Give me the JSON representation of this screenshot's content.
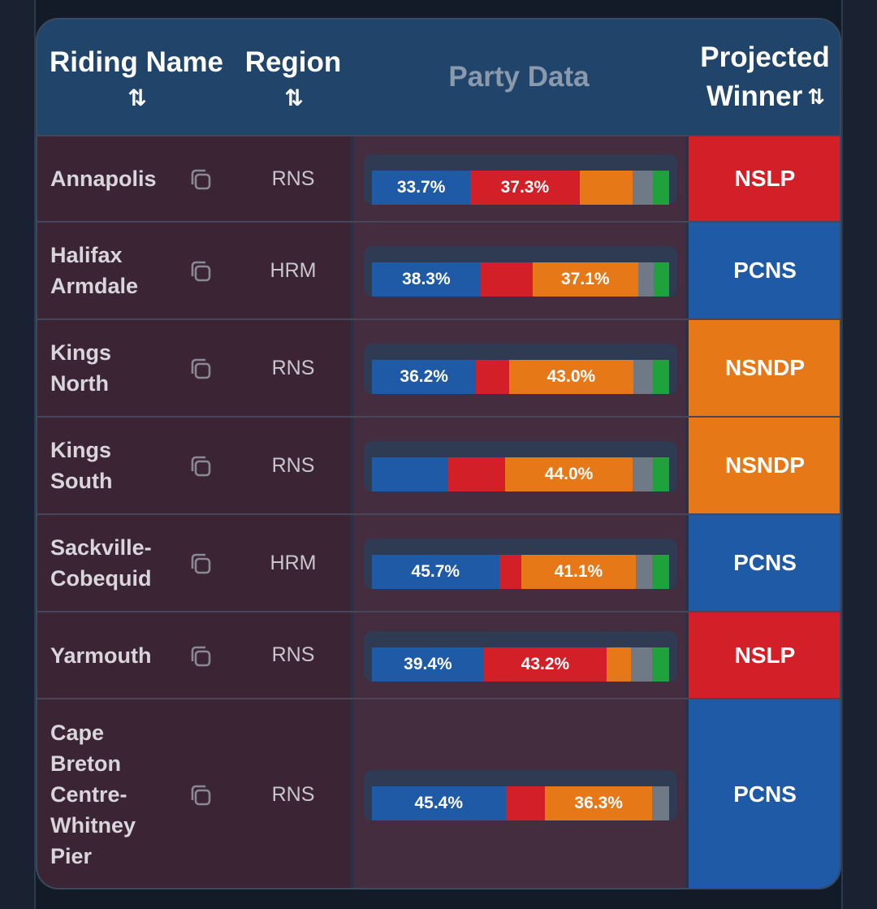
{
  "header": {
    "riding_name": "Riding Name",
    "region": "Region",
    "party_data": "Party Data",
    "projected": "Projected",
    "winner": "Winner",
    "sort_glyph": "⇅"
  },
  "colors": {
    "PCNS": "#1f5aa6",
    "NSLP": "#d31f27",
    "NSNDP": "#e67818",
    "Other": "#6f7a86",
    "Green": "#1fa13b"
  },
  "rows": [
    {
      "name": "Annapolis",
      "region": "RNS",
      "winner": "NSLP",
      "segments": [
        {
          "party": "PCNS",
          "pct": 33.7,
          "label": "33.7%"
        },
        {
          "party": "NSLP",
          "pct": 37.3,
          "label": "37.3%"
        },
        {
          "party": "NSNDP",
          "pct": 18.2,
          "label": ""
        },
        {
          "party": "Other",
          "pct": 7.0,
          "label": ""
        },
        {
          "party": "Green",
          "pct": 5.5,
          "label": ""
        }
      ]
    },
    {
      "name": "Halifax Armdale",
      "region": "HRM",
      "winner": "PCNS",
      "segments": [
        {
          "party": "PCNS",
          "pct": 38.3,
          "label": "38.3%"
        },
        {
          "party": "NSLP",
          "pct": 18.4,
          "label": ""
        },
        {
          "party": "NSNDP",
          "pct": 37.1,
          "label": "37.1%"
        },
        {
          "party": "Other",
          "pct": 5.5,
          "label": ""
        },
        {
          "party": "Green",
          "pct": 5.5,
          "label": ""
        }
      ]
    },
    {
      "name": "Kings North",
      "region": "RNS",
      "winner": "NSNDP",
      "segments": [
        {
          "party": "PCNS",
          "pct": 36.2,
          "label": "36.2%"
        },
        {
          "party": "NSLP",
          "pct": 11.5,
          "label": ""
        },
        {
          "party": "NSNDP",
          "pct": 43.0,
          "label": "43.0%"
        },
        {
          "party": "Other",
          "pct": 7.0,
          "label": ""
        },
        {
          "party": "Green",
          "pct": 5.5,
          "label": ""
        }
      ]
    },
    {
      "name": "Kings South",
      "region": "RNS",
      "winner": "NSNDP",
      "segments": [
        {
          "party": "PCNS",
          "pct": 26.4,
          "label": ""
        },
        {
          "party": "NSLP",
          "pct": 19.4,
          "label": ""
        },
        {
          "party": "NSNDP",
          "pct": 44.0,
          "label": "44.0%"
        },
        {
          "party": "Other",
          "pct": 7.0,
          "label": ""
        },
        {
          "party": "Green",
          "pct": 5.5,
          "label": ""
        }
      ]
    },
    {
      "name": "Sackville-Cobequid",
      "region": "HRM",
      "winner": "PCNS",
      "segments": [
        {
          "party": "PCNS",
          "pct": 45.7,
          "label": "45.7%"
        },
        {
          "party": "NSLP",
          "pct": 8.0,
          "label": ""
        },
        {
          "party": "NSNDP",
          "pct": 41.1,
          "label": "41.1%"
        },
        {
          "party": "Other",
          "pct": 6.0,
          "label": ""
        },
        {
          "party": "Green",
          "pct": 6.0,
          "label": ""
        }
      ]
    },
    {
      "name": "Yarmouth",
      "region": "RNS",
      "winner": "NSLP",
      "segments": [
        {
          "party": "PCNS",
          "pct": 39.4,
          "label": "39.4%"
        },
        {
          "party": "NSLP",
          "pct": 43.2,
          "label": "43.2%"
        },
        {
          "party": "NSNDP",
          "pct": 8.5,
          "label": ""
        },
        {
          "party": "Other",
          "pct": 7.5,
          "label": ""
        },
        {
          "party": "Green",
          "pct": 6.0,
          "label": ""
        }
      ]
    },
    {
      "name": "Cape Breton Centre-Whitney Pier",
      "region": "RNS",
      "winner": "PCNS",
      "segments": [
        {
          "party": "PCNS",
          "pct": 45.4,
          "label": "45.4%"
        },
        {
          "party": "NSLP",
          "pct": 13.5,
          "label": ""
        },
        {
          "party": "NSNDP",
          "pct": 36.3,
          "label": "36.3%"
        },
        {
          "party": "Other",
          "pct": 5.8,
          "label": ""
        }
      ]
    }
  ]
}
